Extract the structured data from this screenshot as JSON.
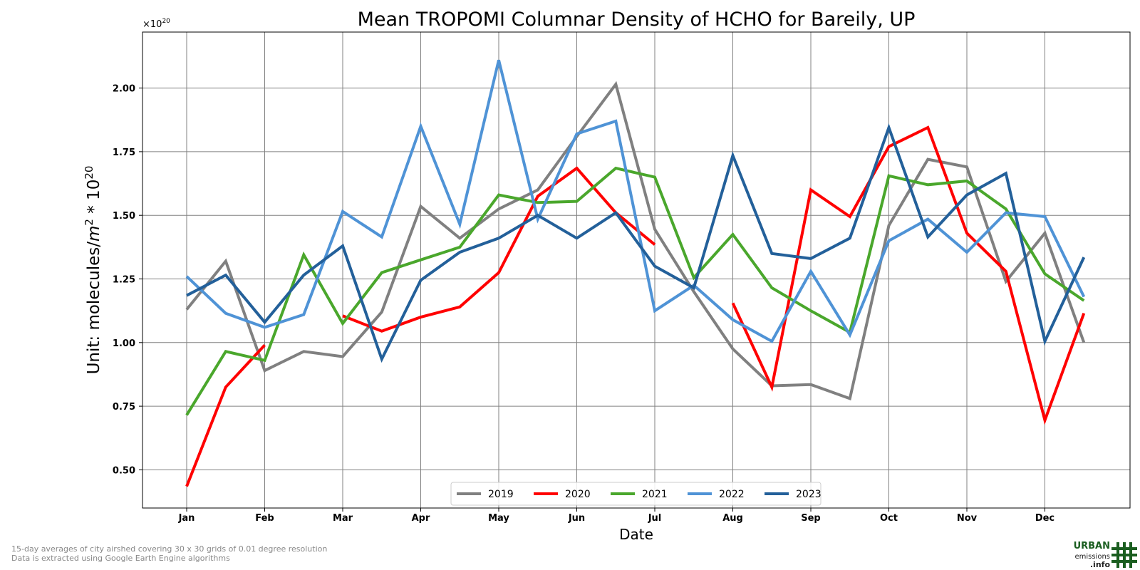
{
  "footnotes": [
    "15-day averages of city airshed covering 30 x 30 grids of 0.01 degree resolution",
    "Data is extracted using Google Earth Engine algorithms"
  ],
  "logo": {
    "line1": "URBAN",
    "line2": "emissions",
    "line3": ".info",
    "color": "#1b5e20"
  },
  "chart_data": {
    "type": "line",
    "title": "Mean TROPOMI Columnar Density of HCHO for Bareily, UP",
    "xlabel": "Date",
    "ylabel_prefix": "Unit: molecules/",
    "ylabel_m": "m",
    "ylabel_mid": " * 10",
    "superscript_2": "2",
    "superscript_20": "20",
    "offset_base": "×10",
    "offset_exp": "20",
    "ylim": [
      0.35,
      2.22
    ],
    "yticks": [
      "0.50",
      "0.75",
      "1.00",
      "1.25",
      "1.50",
      "1.75",
      "2.00"
    ],
    "ytick_values": [
      0.5,
      0.75,
      1.0,
      1.25,
      1.5,
      1.75,
      2.0
    ],
    "month_ticks": [
      "Jan",
      "Feb",
      "Mar",
      "Apr",
      "May",
      "Jun",
      "Jul",
      "Aug",
      "Sep",
      "Oct",
      "Nov",
      "Dec"
    ],
    "x": [
      "Jan 1",
      "Jan 16",
      "Feb 1",
      "Feb 16",
      "Mar 1",
      "Mar 16",
      "Apr 1",
      "Apr 16",
      "May 1",
      "May 16",
      "Jun 1",
      "Jun 16",
      "Jul 1",
      "Jul 16",
      "Aug 1",
      "Aug 16",
      "Sep 1",
      "Sep 16",
      "Oct 1",
      "Oct 16",
      "Nov 1",
      "Nov 16",
      "Dec 1",
      "Dec 16"
    ],
    "grid": true,
    "legend_position": "bottom-center",
    "series": [
      {
        "name": "2019",
        "color": "#808080",
        "values": [
          1.13,
          1.32,
          0.89,
          0.965,
          0.945,
          1.12,
          1.535,
          1.41,
          1.525,
          1.6,
          1.81,
          2.015,
          1.445,
          1.2,
          0.975,
          0.83,
          0.835,
          0.78,
          1.46,
          1.72,
          1.69,
          1.24,
          1.43,
          1.0
        ]
      },
      {
        "name": "2020",
        "color": "#ff0000",
        "values": [
          0.435,
          0.825,
          0.99,
          null,
          1.105,
          1.045,
          1.1,
          1.14,
          1.275,
          1.575,
          1.685,
          1.51,
          1.385,
          null,
          1.155,
          0.825,
          1.6,
          1.495,
          1.77,
          1.845,
          1.43,
          1.28,
          0.695,
          1.115
        ]
      },
      {
        "name": "2021",
        "color": "#4aa72c",
        "values": [
          0.715,
          0.965,
          0.93,
          1.345,
          1.075,
          1.275,
          1.325,
          1.375,
          1.58,
          1.55,
          1.555,
          1.685,
          1.65,
          1.255,
          1.425,
          1.215,
          1.125,
          1.04,
          1.655,
          1.62,
          1.635,
          1.525,
          1.27,
          1.165
        ]
      },
      {
        "name": "2022",
        "color": "#4f93d6",
        "values": [
          1.26,
          1.115,
          1.06,
          1.11,
          1.515,
          1.415,
          1.85,
          1.465,
          2.11,
          1.485,
          1.82,
          1.87,
          1.125,
          1.225,
          1.09,
          1.005,
          1.28,
          1.03,
          1.4,
          1.485,
          1.355,
          1.51,
          1.495,
          1.18
        ]
      },
      {
        "name": "2023",
        "color": "#23609a",
        "values": [
          1.185,
          1.265,
          1.08,
          1.265,
          1.38,
          0.935,
          1.245,
          1.355,
          1.41,
          1.5,
          1.41,
          1.51,
          1.3,
          1.215,
          1.735,
          1.35,
          1.33,
          1.41,
          1.845,
          1.415,
          1.58,
          1.665,
          1.005,
          1.335
        ]
      }
    ]
  }
}
